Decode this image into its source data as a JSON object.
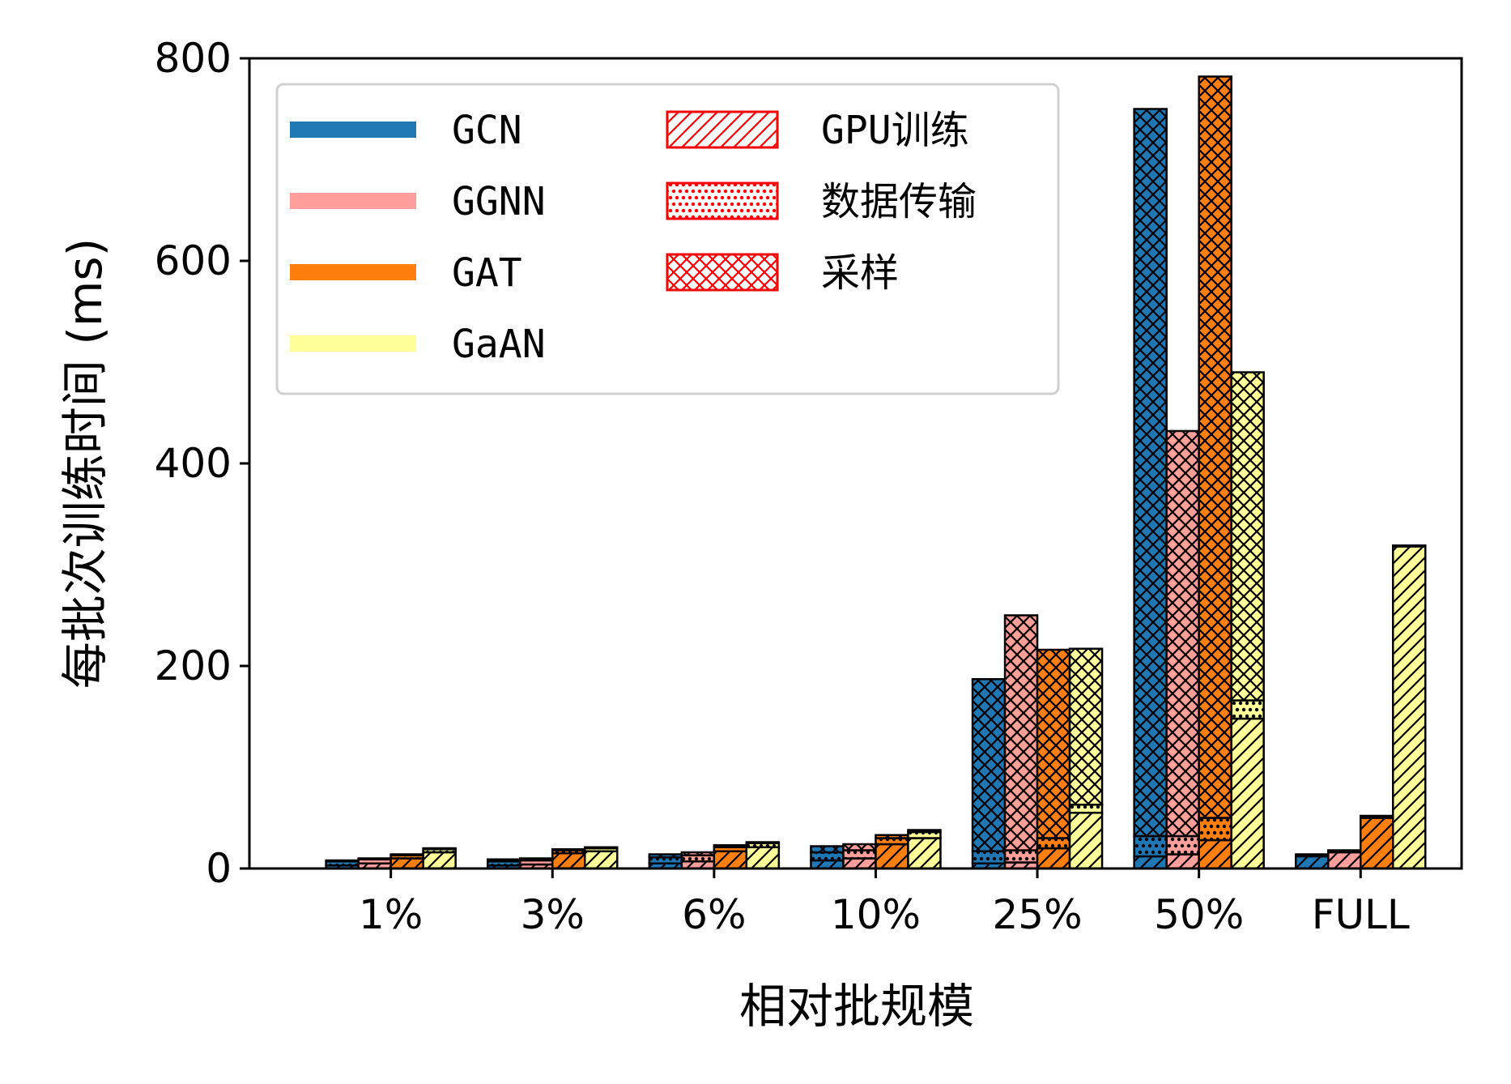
{
  "chart_data": {
    "type": "bar",
    "title": "",
    "xlabel": "相对批规模",
    "ylabel": "每批次训练时间 (ms)",
    "ylim": [
      0,
      800
    ],
    "yticks": [
      0,
      200,
      400,
      600,
      800
    ],
    "categories": [
      "1%",
      "3%",
      "6%",
      "10%",
      "25%",
      "50%",
      "FULL"
    ],
    "stack_order": [
      "GPU训练",
      "数据传输",
      "采样"
    ],
    "series": [
      {
        "name": "GCN",
        "color": "#1f77b4",
        "stacks": [
          {
            "component": "GPU训练",
            "values": [
              3,
              3,
              5,
              8,
              5,
              12,
              12
            ]
          },
          {
            "component": "数据传输",
            "values": [
              4,
              4,
              6,
              8,
              12,
              20,
              2
            ]
          },
          {
            "component": "采样",
            "values": [
              1,
              2,
              3,
              6,
              170,
              718,
              0
            ]
          }
        ]
      },
      {
        "name": "GGNN",
        "color": "#ff9e9a",
        "stacks": [
          {
            "component": "GPU训练",
            "values": [
              5,
              4,
              7,
              10,
              6,
              14,
              16
            ]
          },
          {
            "component": "数据传输",
            "values": [
              4,
              4,
              6,
              8,
              12,
              18,
              2
            ]
          },
          {
            "component": "采样",
            "values": [
              1,
              2,
              3,
              6,
              232,
              400,
              0
            ]
          }
        ]
      },
      {
        "name": "GAT",
        "color": "#ff7f0e",
        "stacks": [
          {
            "component": "GPU训练",
            "values": [
              10,
              15,
              17,
              24,
              20,
              28,
              50
            ]
          },
          {
            "component": "数据传输",
            "values": [
              3,
              3,
              4,
              6,
              10,
              22,
              2
            ]
          },
          {
            "component": "采样",
            "values": [
              1,
              1,
              2,
              3,
              186,
              732,
              0
            ]
          }
        ]
      },
      {
        "name": "GaAN",
        "color": "#ffff99",
        "stacks": [
          {
            "component": "GPU训练",
            "values": [
              16,
              17,
              21,
              30,
              55,
              148,
              318
            ]
          },
          {
            "component": "数据传输",
            "values": [
              3,
              3,
              4,
              6,
              8,
              18,
              1
            ]
          },
          {
            "component": "采样",
            "values": [
              1,
              1,
              1,
              2,
              154,
              324,
              0
            ]
          }
        ]
      }
    ],
    "legend": {
      "position": "upper-left",
      "series_entries": [
        "GCN",
        "GGNN",
        "GAT",
        "GaAN"
      ],
      "component_entries": [
        "GPU训练",
        "数据传输",
        "采样"
      ],
      "component_color": "#ff0000"
    },
    "grid": false
  }
}
